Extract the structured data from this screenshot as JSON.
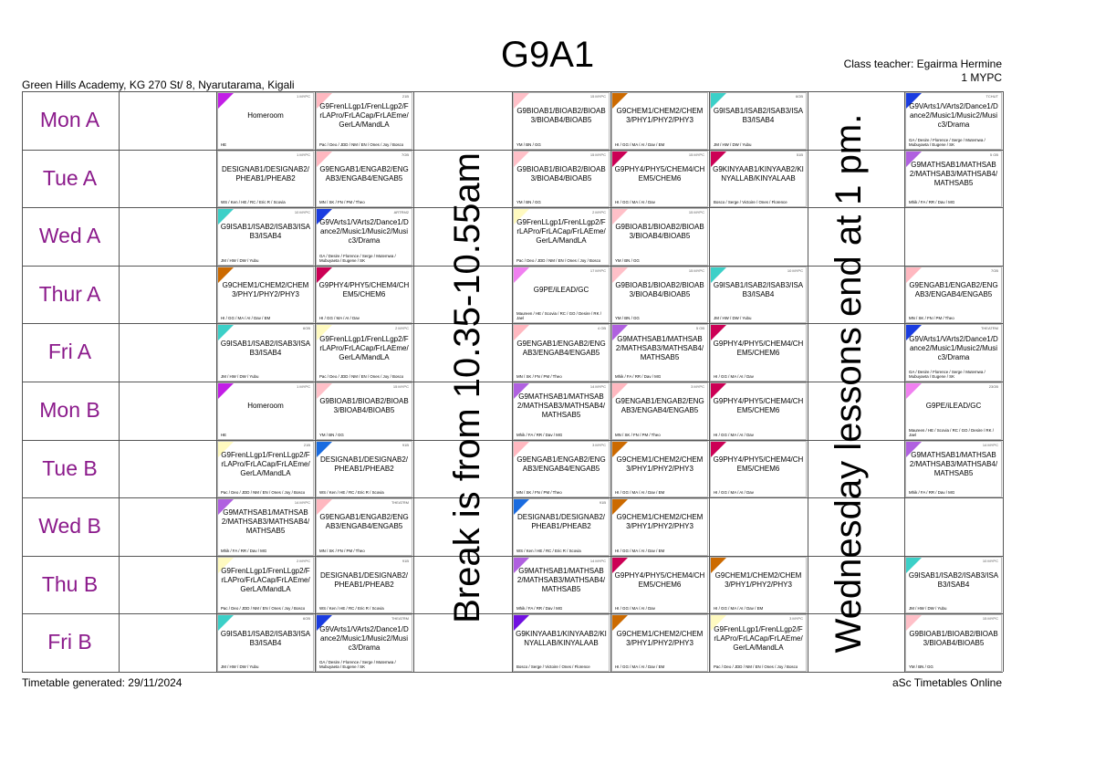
{
  "header": {
    "title": "G9A1",
    "school": "Green Hills Academy, KG 270 St/ 8, Nyarutarama, Kigali",
    "class_teacher": "Class teacher: Egairma Hermine",
    "room": "1 MYPC"
  },
  "footer": {
    "generated": "Timetable generated: 29/11/2024",
    "brand": "aSc Timetables Online"
  },
  "days": [
    "Mon A",
    "Tue A",
    "Wed A",
    "Thur A",
    "Fri A",
    "Mon B",
    "Tue B",
    "Wed B",
    "Thu B",
    "Fri B"
  ],
  "column_headers": [
    "",
    "",
    "",
    "",
    "",
    "",
    "",
    "",
    ""
  ],
  "notes": {
    "break": "Break is from 10.35-10.55am",
    "wednesday": "Wednesday lessons end at 1 pm."
  },
  "colors": {
    "day_label": "#8b1a8b",
    "grid": "#555555"
  },
  "lessons": [
    {
      "row": 0,
      "col": 1,
      "subject": "Homeroom",
      "teachers": "HE",
      "room": "1 MYPC",
      "color": "#c21ee6"
    },
    {
      "row": 0,
      "col": 2,
      "subject": "G9FrenLLgp1/FrenLLgp2/FrLAPro/FrLACap/FrLAEme/GerLA/MandLA",
      "teachers": "Pac / Deo / JDD / NM / EN / Ones / Joy / Bosco",
      "room": "21B",
      "color": "#ffb8c0"
    },
    {
      "row": 0,
      "col": 4,
      "subject": "G9BIOAB1/BIOAB2/BIOAB3/BIOAB4/BIOAB5",
      "teachers": "YM / BN / GG",
      "room": "15 MYPC",
      "color": "#ffc0c8"
    },
    {
      "row": 0,
      "col": 5,
      "subject": "G9CHEM1/CHEM2/CHEM3/PHY1/PHY2/PHY3",
      "teachers": "HI / GG / MA / AI / Dav / EM",
      "room": "",
      "color": "#cc6a00"
    },
    {
      "row": 0,
      "col": 6,
      "subject": "G9ISAB1/ISAB2/ISAB3/ISAB3/ISAB4",
      "teachers": "JM / HW / DW / Yubu",
      "room": "6OB",
      "color": "#3cd0c8"
    },
    {
      "row": 0,
      "col": 8,
      "subject": "G9VArts1/VArts2/Dance1/Dance2/Music1/Music2/Music3/Drama",
      "teachers": "GA / Desire / Florence / Serge / Mutemwa / Mubuyaeta / Eugene / SK",
      "room": "TCHUT",
      "color": "#1a3ce0"
    },
    {
      "row": 1,
      "col": 1,
      "subject": "DESIGNAB1/DESIGNAB2/PHEAB1/PHEAB2",
      "teachers": "WS / Ken / HE / RC / Eric R / Scovia",
      "room": "1 MYPC",
      "color": "#ffffff"
    },
    {
      "row": 1,
      "col": 2,
      "subject": "G9ENGAB1/ENGAB2/ENGAB3/ENGAB4/ENGAB5",
      "teachers": "MN / SK / FN / PM / Theo",
      "room": "7OB",
      "color": "#ffb8c0"
    },
    {
      "row": 1,
      "col": 4,
      "subject": "G9BIOAB1/BIOAB2/BIOAB3/BIOAB4/BIOAB5",
      "teachers": "YM / BN / GG",
      "room": "15 MYPC",
      "color": "#ffc0c8"
    },
    {
      "row": 1,
      "col": 5,
      "subject": "G9PHY4/PHY5/CHEM4/CHEM5/CHEM6",
      "teachers": "HI / GG / MA / AI / Dav",
      "room": "15 MYPC",
      "color": "#cc0055"
    },
    {
      "row": 1,
      "col": 6,
      "subject": "G9KINYAAB1/KINYAAB2/KINYALLAB/KINYALAAB",
      "teachers": "Bosco / Serge / Victoire / Ones / Florence",
      "room": "51B",
      "color": "#cc0055"
    },
    {
      "row": 1,
      "col": 8,
      "subject": "G9MATHSAB1/MATHSAB2/MATHSAB3/MATHSAB4/MATHSAB5",
      "teachers": "Mhik / FA / RR / Dav / MG",
      "room": "5 OB",
      "color": "#b060e0"
    },
    {
      "row": 2,
      "col": 1,
      "subject": "G9ISAB1/ISAB2/ISAB3/ISAB3/ISAB4",
      "teachers": "JM / HW / DW / Yubu",
      "room": "10 MYPC",
      "color": "#3cd0c8"
    },
    {
      "row": 2,
      "col": 2,
      "subject": "G9VArts1/VArts2/Dance1/Dance2/Music1/Music2/Music3/Drama",
      "teachers": "GA / Desire / Florence / Serge / Mutemwa / Mubuyaeta / Eugene / SK",
      "room": "ARTRM2",
      "color": "#1a3ce0"
    },
    {
      "row": 2,
      "col": 4,
      "subject": "G9FrenLLgp1/FrenLLgp2/FrLAPro/FrLACap/FrLAEme/GerLA/MandLA",
      "teachers": "Pac / Deo / JDD / NM / EN / Ones / Joy / Bosco",
      "room": "2 MYPC",
      "color": "#fffac0"
    },
    {
      "row": 2,
      "col": 5,
      "subject": "G9BIOAB1/BIOAB2/BIOAB3/BIOAB4/BIOAB5",
      "teachers": "YM / BN / GG",
      "room": "15 MYPC",
      "color": "#ffc0c8"
    },
    {
      "row": 3,
      "col": 1,
      "subject": "G9CHEM1/CHEM2/CHEM3/PHY1/PHY2/PHY3",
      "teachers": "HI / GG / MA / AI / Dav / EM",
      "room": "",
      "color": "#cc6a00"
    },
    {
      "row": 3,
      "col": 2,
      "subject": "G9PHY4/PHY5/CHEM4/CHEM5/CHEM6",
      "teachers": "HI / GG / MA / AI / Dav",
      "room": "",
      "color": "#cc0055"
    },
    {
      "row": 3,
      "col": 4,
      "subject": "G9PE/iLEAD/GC",
      "teachers": "Maureen / HE / Scovia / RC / GO / Desire / RK / Jael",
      "room": "17 MYPC",
      "color": "#f080f0"
    },
    {
      "row": 3,
      "col": 5,
      "subject": "G9BIOAB1/BIOAB2/BIOAB3/BIOAB4/BIOAB5",
      "teachers": "YM / BN / GG",
      "room": "15 MYPC",
      "color": "#ffc0c8"
    },
    {
      "row": 3,
      "col": 6,
      "subject": "G9ISAB1/ISAB2/ISAB3/ISAB3/ISAB4",
      "teachers": "JM / HW / DW / Yubu",
      "room": "10 MYPC",
      "color": "#3cd0c8"
    },
    {
      "row": 3,
      "col": 8,
      "subject": "G9ENGAB1/ENGAB2/ENGAB3/ENGAB4/ENGAB5",
      "teachers": "MN / SK / FN / PM / Theo",
      "room": "7OB",
      "color": "#ffb8c0"
    },
    {
      "row": 4,
      "col": 1,
      "subject": "G9ISAB1/ISAB2/ISAB3/ISAB3/ISAB4",
      "teachers": "JM / HW / DW / Yubu",
      "room": "6OB",
      "color": "#3cd0c8"
    },
    {
      "row": 4,
      "col": 2,
      "subject": "G9FrenLLgp1/FrenLLgp2/FrLAPro/FrLACap/FrLAEme/GerLA/MandLA",
      "teachers": "Pac / Deo / JDD / NM / EN / Ones / Joy / Bosco",
      "room": "2 MYPC",
      "color": "#fffac0"
    },
    {
      "row": 4,
      "col": 4,
      "subject": "G9ENGAB1/ENGAB2/ENGAB3/ENGAB4/ENGAB5",
      "teachers": "MN / SK / FN / PM / Theo",
      "room": "4 OB",
      "color": "#ffb8c0"
    },
    {
      "row": 4,
      "col": 5,
      "subject": "G9MATHSAB1/MATHSAB2/MATHSAB3/MATHSAB4/MATHSAB5",
      "teachers": "Mhik / FA / RR / Dav / MG",
      "room": "5 OB",
      "color": "#b060e0"
    },
    {
      "row": 4,
      "col": 6,
      "subject": "G9PHY4/PHY5/CHEM4/CHEM5/CHEM6",
      "teachers": "HI / GG / MA / AI / Dav",
      "room": "",
      "color": "#cc0055"
    },
    {
      "row": 4,
      "col": 8,
      "subject": "G9VArts1/VArts2/Dance1/Dance2/Music1/Music2/Music3/Drama",
      "teachers": "GA / Desire / Florence / Serge / Mutemwa / Mubuyaeta / Eugene / SK",
      "room": "THEATRM",
      "color": "#1a3ce0"
    },
    {
      "row": 5,
      "col": 1,
      "subject": "Homeroom",
      "teachers": "HE",
      "room": "1 MYPC",
      "color": "#c21ee6"
    },
    {
      "row": 5,
      "col": 2,
      "subject": "G9BIOAB1/BIOAB2/BIOAB3/BIOAB4/BIOAB5",
      "teachers": "YM / BN / GG",
      "room": "15 MYPC",
      "color": "#ffc0c8"
    },
    {
      "row": 5,
      "col": 4,
      "subject": "G9MATHSAB1/MATHSAB2/MATHSAB3/MATHSAB4/MATHSAB5",
      "teachers": "Mhik / FA / RR / Dav / MG",
      "room": "14 MYPC",
      "color": "#b060e0"
    },
    {
      "row": 5,
      "col": 5,
      "subject": "G9ENGAB1/ENGAB2/ENGAB3/ENGAB4/ENGAB5",
      "teachers": "MN / SK / FN / PM / Theo",
      "room": "3 MYPC",
      "color": "#ffb8c0"
    },
    {
      "row": 5,
      "col": 6,
      "subject": "G9PHY4/PHY5/CHEM4/CHEM5/CHEM6",
      "teachers": "HI / GG / MA / AI / Dav",
      "room": "",
      "color": "#cc0055"
    },
    {
      "row": 5,
      "col": 8,
      "subject": "G9PE/iLEAD/GC",
      "teachers": "Maureen / HE / Scovia / RC / GO / Desire / RK / Jael",
      "room": "23OB",
      "color": "#f080f0"
    },
    {
      "row": 6,
      "col": 1,
      "subject": "G9FrenLLgp1/FrenLLgp2/FrLAPro/FrLACap/FrLAEme/GerLA/MandLA",
      "teachers": "Pac / Deo / JDD / NM / EN / Ones / Joy / Bosco",
      "room": "21B",
      "color": "#fffac0"
    },
    {
      "row": 6,
      "col": 2,
      "subject": "DESIGNAB1/DESIGNAB2/PHEAB1/PHEAB2",
      "teachers": "WS / Ken / HE / RC / Eric R / Scovia",
      "room": "91B",
      "color": "#1a6ce0"
    },
    {
      "row": 6,
      "col": 4,
      "subject": "G9ENGAB1/ENGAB2/ENGAB3/ENGAB4/ENGAB5",
      "teachers": "MN / SK / FN / PM / Theo",
      "room": "3 MYPC",
      "color": "#ffb8c0"
    },
    {
      "row": 6,
      "col": 5,
      "subject": "G9CHEM1/CHEM2/CHEM3/PHY1/PHY2/PHY3",
      "teachers": "HI / GG / MA / AI / Dav / EM",
      "room": "",
      "color": "#cc6a00"
    },
    {
      "row": 6,
      "col": 6,
      "subject": "G9PHY4/PHY5/CHEM4/CHEM5/CHEM6",
      "teachers": "HI / GG / MA / AI / Dav",
      "room": "",
      "color": "#cc0055"
    },
    {
      "row": 6,
      "col": 8,
      "subject": "G9MATHSAB1/MATHSAB2/MATHSAB3/MATHSAB4/MATHSAB5",
      "teachers": "Mhik / FA / RR / Dav / MG",
      "room": "14 MYPC",
      "color": "#b060e0"
    },
    {
      "row": 7,
      "col": 1,
      "subject": "G9MATHSAB1/MATHSAB2/MATHSAB3/MATHSAB4/MATHSAB5",
      "teachers": "Mhik / FA / RR / Dav / MG",
      "room": "14 MYPC",
      "color": "#b060e0"
    },
    {
      "row": 7,
      "col": 2,
      "subject": "G9ENGAB1/ENGAB2/ENGAB3/ENGAB4/ENGAB5",
      "teachers": "MN / SK / FN / PM / Theo",
      "room": "THEATRM",
      "color": "#ffb8c0"
    },
    {
      "row": 7,
      "col": 4,
      "subject": "DESIGNAB1/DESIGNAB2/PHEAB1/PHEAB2",
      "teachers": "WS / Ken / HE / RC / Eric R / Scovia",
      "room": "91B",
      "color": "#1a6ce0"
    },
    {
      "row": 7,
      "col": 5,
      "subject": "G9CHEM1/CHEM2/CHEM3/PHY1/PHY2/PHY3",
      "teachers": "HI / GG / MA / AI / Dav / EM",
      "room": "",
      "color": "#cc6a00"
    },
    {
      "row": 8,
      "col": 1,
      "subject": "G9FrenLLgp1/FrenLLgp2/FrLAPro/FrLACap/FrLAEme/GerLA/MandLA",
      "teachers": "Pac / Deo / JDD / NM / EN / Ones / Joy / Bosco",
      "room": "2 MYPC",
      "color": "#fffac0"
    },
    {
      "row": 8,
      "col": 2,
      "subject": "DESIGNAB1/DESIGNAB2/PHEAB1/PHEAB2",
      "teachers": "WS / Ken / HE / RC / Eric R / Scovia",
      "room": "91B",
      "color": "#ffffff"
    },
    {
      "row": 8,
      "col": 4,
      "subject": "G9MATHSAB1/MATHSAB2/MATHSAB3/MATHSAB4/MATHSAB5",
      "teachers": "Mhik / FA / RR / Dav / MG",
      "room": "14 MYPC",
      "color": "#b060e0"
    },
    {
      "row": 8,
      "col": 5,
      "subject": "G9PHY4/PHY5/CHEM4/CHEM5/CHEM6",
      "teachers": "HI / GG / MA / AI / Dav",
      "room": "",
      "color": "#cc0055"
    },
    {
      "row": 8,
      "col": 6,
      "subject": "G9CHEM1/CHEM2/CHEM3/PHY1/PHY2/PHY3",
      "teachers": "HI / GG / MA / AI / Dav / EM",
      "room": "",
      "color": "#cc6a00"
    },
    {
      "row": 8,
      "col": 8,
      "subject": "G9ISAB1/ISAB2/ISAB3/ISAB3/ISAB4",
      "teachers": "JM / HW / DW / Yubu",
      "room": "10 MYPC",
      "color": "#3cd0c8"
    },
    {
      "row": 9,
      "col": 1,
      "subject": "G9ISAB1/ISAB2/ISAB3/ISAB3/ISAB4",
      "teachers": "JM / HW / DW / Yubu",
      "room": "6OB",
      "color": "#3cd0c8"
    },
    {
      "row": 9,
      "col": 2,
      "subject": "G9VArts1/VArts2/Dance1/Dance2/Music1/Music2/Music3/Drama",
      "teachers": "GA / Desire / Florence / Serge / Mutemwa / Mubuyaeta / Eugene / SK",
      "room": "THEATRM",
      "color": "#1a3ce0"
    },
    {
      "row": 9,
      "col": 4,
      "subject": "G9KINYAAB1/KINYAAB2/KINYALLAB/KINYALAAB",
      "teachers": "Bosco / Serge / Victoire / Ones / Florence",
      "room": "",
      "color": "#7010e0"
    },
    {
      "row": 9,
      "col": 5,
      "subject": "G9CHEM1/CHEM2/CHEM3/PHY1/PHY2/PHY3",
      "teachers": "HI / GG / MA / AI / Dav / EM",
      "room": "",
      "color": "#cc6a00"
    },
    {
      "row": 9,
      "col": 6,
      "subject": "G9FrenLLgp1/FrenLLgp2/FrLAPro/FrLACap/FrLAEme/GerLA/MandLA",
      "teachers": "Pac / Deo / JDD / NM / EN / Ones / Joy / Bosco",
      "room": "3 MYPC",
      "color": "#fffac0"
    },
    {
      "row": 9,
      "col": 8,
      "subject": "G9BIOAB1/BIOAB2/BIOAB3/BIOAB4/BIOAB5",
      "teachers": "YM / BN / GG",
      "room": "15 MYPC",
      "color": "#ffc0c8"
    }
  ]
}
